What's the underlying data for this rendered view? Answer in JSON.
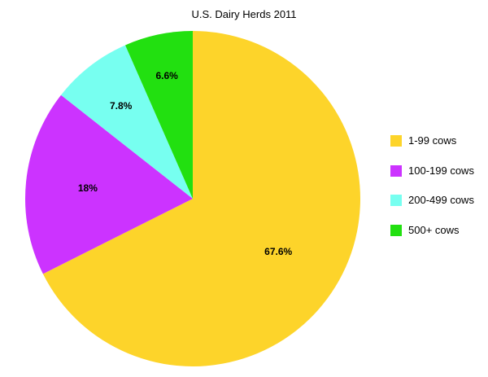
{
  "chart_data": {
    "type": "pie",
    "title": "U.S. Dairy Herds 2011",
    "categories": [
      "1-99 cows",
      "100-199 cows",
      "200-499 cows",
      "500+ cows"
    ],
    "values": [
      67.6,
      18,
      7.8,
      6.6
    ],
    "value_labels": [
      "67.6%",
      "18%",
      "7.8%",
      "6.6%"
    ],
    "colors": [
      "#FDD42A",
      "#CC33FF",
      "#77FFF0",
      "#22E010"
    ],
    "legend_position": "right",
    "start_angle": "top",
    "direction": "clockwise"
  }
}
